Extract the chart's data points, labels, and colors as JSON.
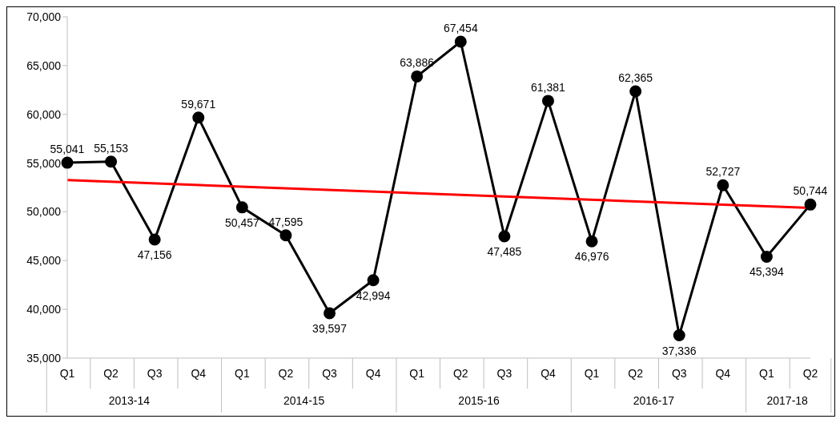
{
  "chart_data": {
    "type": "line",
    "categories": [
      "Q1",
      "Q2",
      "Q3",
      "Q4",
      "Q1",
      "Q2",
      "Q3",
      "Q4",
      "Q1",
      "Q2",
      "Q3",
      "Q4",
      "Q1",
      "Q2",
      "Q3",
      "Q4",
      "Q1",
      "Q2"
    ],
    "series": [
      {
        "color": "#000000",
        "marker": "circle",
        "values": [
          55041,
          55153,
          47156,
          59671,
          50457,
          47595,
          39597,
          42994,
          63886,
          67454,
          47485,
          61381,
          46976,
          62365,
          37336,
          52727,
          45394,
          50744
        ],
        "value_labels": [
          "55,041",
          "55,153",
          "47,156",
          "59,671",
          "50,457",
          "47,595",
          "39,597",
          "42,994",
          "63,886",
          "67,454",
          "47,485",
          "61,381",
          "46,976",
          "62,365",
          "37,336",
          "52,727",
          "45,394",
          "50,744"
        ]
      },
      {
        "color": "#ff0000",
        "marker": "none",
        "values": [
          53250,
          null,
          null,
          null,
          null,
          null,
          null,
          null,
          null,
          null,
          null,
          null,
          null,
          null,
          null,
          null,
          null,
          50400
        ]
      }
    ],
    "annotations": [
      "2013-14",
      "2014-15",
      "2015-16",
      "2016-17",
      "2017-18"
    ],
    "ylim": [
      35000,
      70000
    ],
    "yticks": [
      {
        "value": 35000,
        "label": "35,000"
      },
      {
        "value": 40000,
        "label": "40,000"
      },
      {
        "value": 45000,
        "label": "45,000"
      },
      {
        "value": 50000,
        "label": "50,000"
      },
      {
        "value": 55000,
        "label": "55,000"
      },
      {
        "value": 60000,
        "label": "60,000"
      },
      {
        "value": 65000,
        "label": "65,000"
      },
      {
        "value": 70000,
        "label": "70,000"
      }
    ],
    "grid": false,
    "legend": false,
    "line_style": "solid"
  }
}
